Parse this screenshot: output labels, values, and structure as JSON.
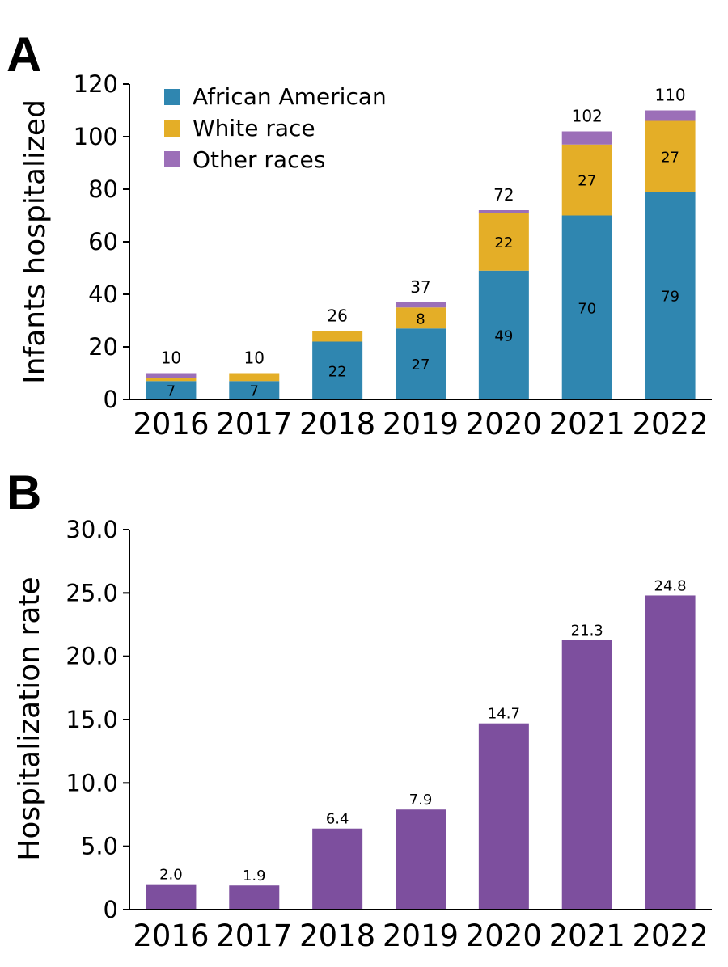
{
  "chart_data": [
    {
      "panel": "A",
      "type": "bar",
      "stacked": true,
      "ylabel": "Infants hospitalized",
      "ylim": [
        0,
        120
      ],
      "yticks": [
        "0",
        "20",
        "40",
        "60",
        "80",
        "100",
        "120"
      ],
      "categories": [
        "2016",
        "2017",
        "2018",
        "2019",
        "2020",
        "2021",
        "2022"
      ],
      "series": [
        {
          "name": "African American",
          "color": "#2f86b0",
          "values": [
            7,
            7,
            22,
            27,
            49,
            70,
            79
          ],
          "labels": [
            "7",
            "7",
            "22",
            "27",
            "49",
            "70",
            "79"
          ]
        },
        {
          "name": "White race",
          "color": "#e4ae27",
          "values": [
            1,
            3,
            4,
            8,
            22,
            27,
            27
          ],
          "labels": [
            "",
            "",
            "",
            "8",
            "22",
            "27",
            "27"
          ]
        },
        {
          "name": "Other races",
          "color": "#9c6fb8",
          "values": [
            2,
            0,
            0,
            2,
            1,
            5,
            4
          ],
          "labels": [
            "",
            "",
            "",
            "",
            "",
            "",
            ""
          ]
        }
      ],
      "totals": [
        "10",
        "10",
        "26",
        "37",
        "72",
        "102",
        "110"
      ],
      "legend_position": "top-left"
    },
    {
      "panel": "B",
      "type": "bar",
      "ylabel": "Hospitalization rate",
      "ylim": [
        0,
        30
      ],
      "yticks": [
        "0",
        "5.0",
        "10.0",
        "15.0",
        "20.0",
        "25.0",
        "30.0"
      ],
      "categories": [
        "2016",
        "2017",
        "2018",
        "2019",
        "2020",
        "2021",
        "2022"
      ],
      "color": "#7d4f9e",
      "values": [
        2.0,
        1.9,
        6.4,
        7.9,
        14.7,
        21.3,
        24.8
      ],
      "labels": [
        "2.0",
        "1.9",
        "6.4",
        "7.9",
        "14.7",
        "21.3",
        "24.8"
      ]
    }
  ]
}
